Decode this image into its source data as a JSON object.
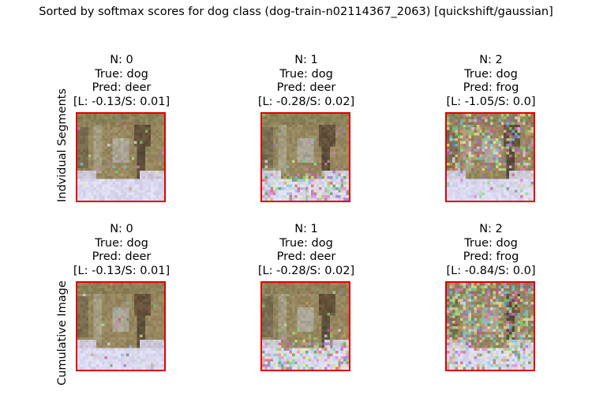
{
  "figure": {
    "title": "Sorted by softmax scores for dog class (dog-train-n02114367_2063) [quickshift/gaussian]",
    "row_labels": [
      "Indvidual Segments",
      "Cumulative Image"
    ],
    "frame_color": "#e00000",
    "rows": [
      {
        "panels": [
          {
            "n": "N: 0",
            "true": "True: dog",
            "pred": "Pred: deer",
            "scores": "[L: -0.13/S: 0.01]",
            "noise": "low"
          },
          {
            "n": "N: 1",
            "true": "True: dog",
            "pred": "Pred: deer",
            "scores": "[L: -0.28/S: 0.02]",
            "noise": "bottom"
          },
          {
            "n": "N: 2",
            "true": "True: dog",
            "pred": "Pred: frog",
            "scores": "[L: -1.05/S: 0.0]",
            "noise": "top"
          }
        ]
      },
      {
        "panels": [
          {
            "n": "N: 0",
            "true": "True: dog",
            "pred": "Pred: deer",
            "scores": "[L: -0.13/S: 0.01]",
            "noise": "low"
          },
          {
            "n": "N: 1",
            "true": "True: dog",
            "pred": "Pred: deer",
            "scores": "[L: -0.28/S: 0.02]",
            "noise": "bottom"
          },
          {
            "n": "N: 2",
            "true": "True: dog",
            "pred": "Pred: frog",
            "scores": "[L: -0.84/S: 0.0]",
            "noise": "heavy"
          }
        ]
      }
    ]
  }
}
